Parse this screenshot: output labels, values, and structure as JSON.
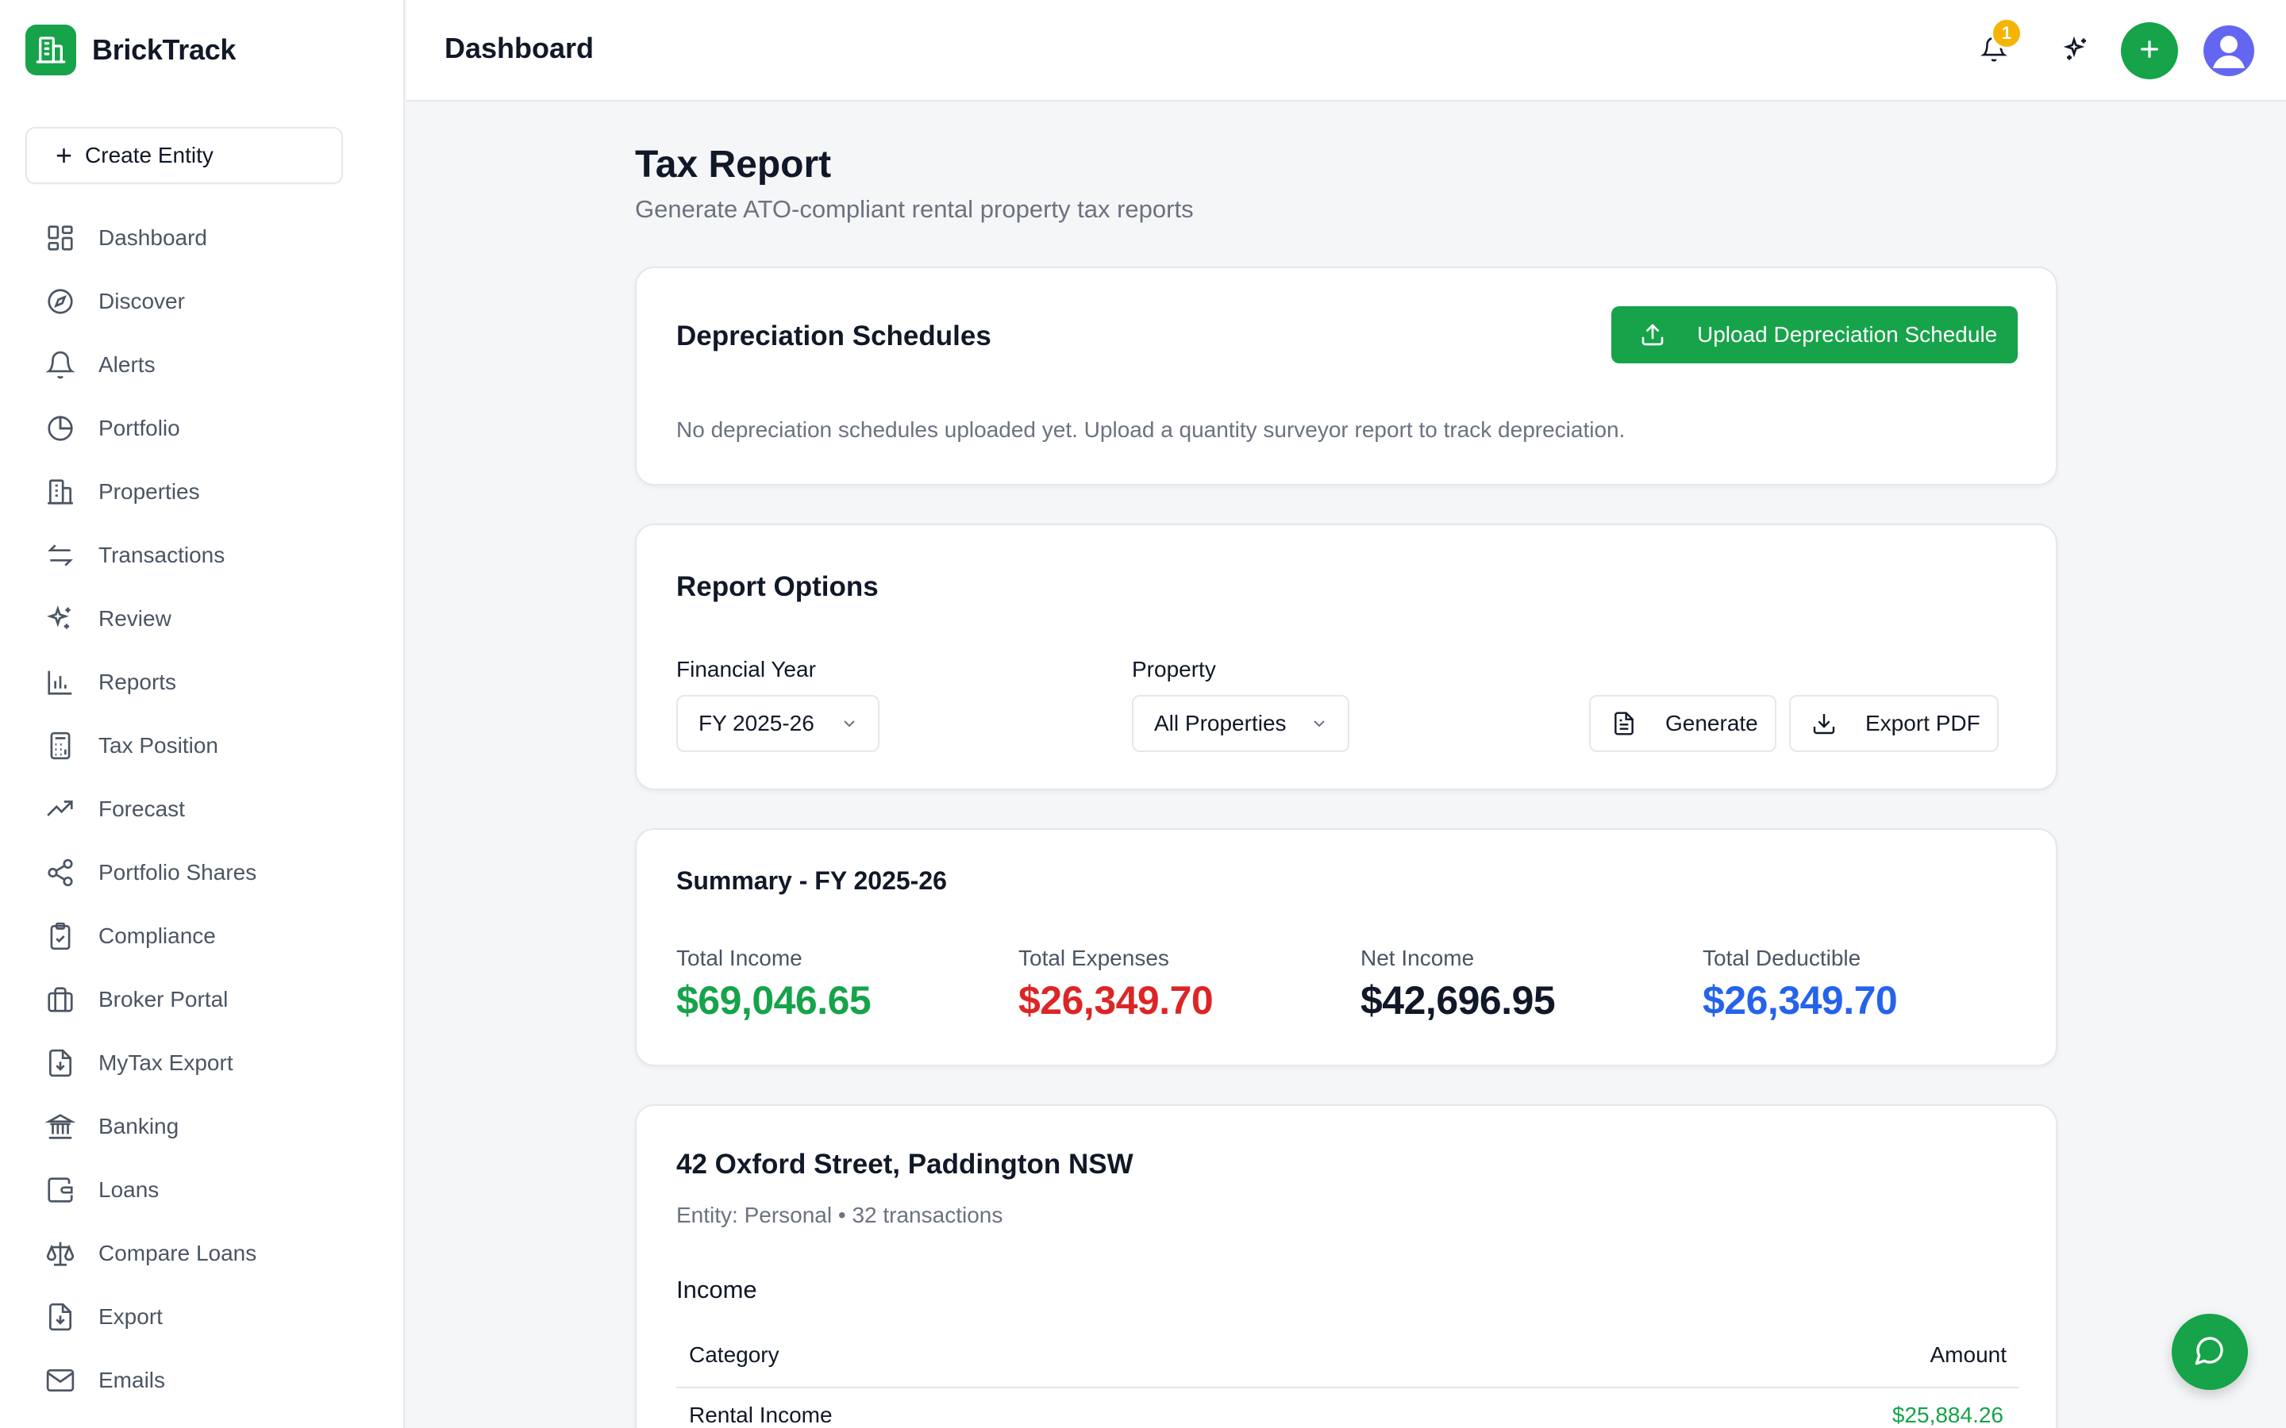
{
  "app": {
    "name": "BrickTrack",
    "create_entity_label": "Create Entity"
  },
  "sidebar": {
    "items": [
      {
        "label": "Dashboard",
        "icon": "dashboard-icon"
      },
      {
        "label": "Discover",
        "icon": "compass-icon"
      },
      {
        "label": "Alerts",
        "icon": "bell-icon"
      },
      {
        "label": "Portfolio",
        "icon": "pie-chart-icon"
      },
      {
        "label": "Properties",
        "icon": "building-icon"
      },
      {
        "label": "Transactions",
        "icon": "arrows-swap-icon"
      },
      {
        "label": "Review",
        "icon": "sparkles-icon"
      },
      {
        "label": "Reports",
        "icon": "bar-chart-icon"
      },
      {
        "label": "Tax Position",
        "icon": "calculator-icon"
      },
      {
        "label": "Forecast",
        "icon": "trending-up-icon"
      },
      {
        "label": "Portfolio Shares",
        "icon": "share-icon"
      },
      {
        "label": "Compliance",
        "icon": "clipboard-check-icon"
      },
      {
        "label": "Broker Portal",
        "icon": "briefcase-icon"
      },
      {
        "label": "MyTax Export",
        "icon": "file-download-icon"
      },
      {
        "label": "Banking",
        "icon": "bank-icon"
      },
      {
        "label": "Loans",
        "icon": "wallet-icon"
      },
      {
        "label": "Compare Loans",
        "icon": "scale-icon"
      },
      {
        "label": "Export",
        "icon": "file-export-icon"
      },
      {
        "label": "Emails",
        "icon": "mail-icon"
      }
    ]
  },
  "header": {
    "title": "Dashboard",
    "notification_count": "1"
  },
  "page": {
    "title": "Tax Report",
    "subtitle": "Generate ATO-compliant rental property tax reports"
  },
  "depreciation": {
    "title": "Depreciation Schedules",
    "upload_label": "Upload Depreciation Schedule",
    "empty_text": "No depreciation schedules uploaded yet. Upload a quantity surveyor report to track depreciation."
  },
  "options": {
    "title": "Report Options",
    "financial_year_label": "Financial Year",
    "financial_year_value": "FY 2025-26",
    "property_label": "Property",
    "property_value": "All Properties",
    "generate_label": "Generate",
    "export_label": "Export PDF"
  },
  "summary": {
    "title": "Summary - FY 2025-26",
    "total_income_label": "Total Income",
    "total_income": "$69,046.65",
    "total_expenses_label": "Total Expenses",
    "total_expenses": "$26,349.70",
    "net_income_label": "Net Income",
    "net_income": "$42,696.95",
    "total_deductible_label": "Total Deductible",
    "total_deductible": "$26,349.70"
  },
  "property_report": {
    "title": "42 Oxford Street, Paddington NSW",
    "meta": "Entity: Personal • 32 transactions",
    "income_heading": "Income",
    "columns": {
      "category": "Category",
      "amount": "Amount"
    },
    "rows": [
      {
        "category": "Rental Income",
        "amount": "$25,884.26"
      }
    ]
  },
  "colors": {
    "brand": "#16a34a",
    "income": "#16a34a",
    "expenses": "#dc2626",
    "net": "#111827",
    "deductible": "#2563eb",
    "badge": "#f5b400"
  }
}
